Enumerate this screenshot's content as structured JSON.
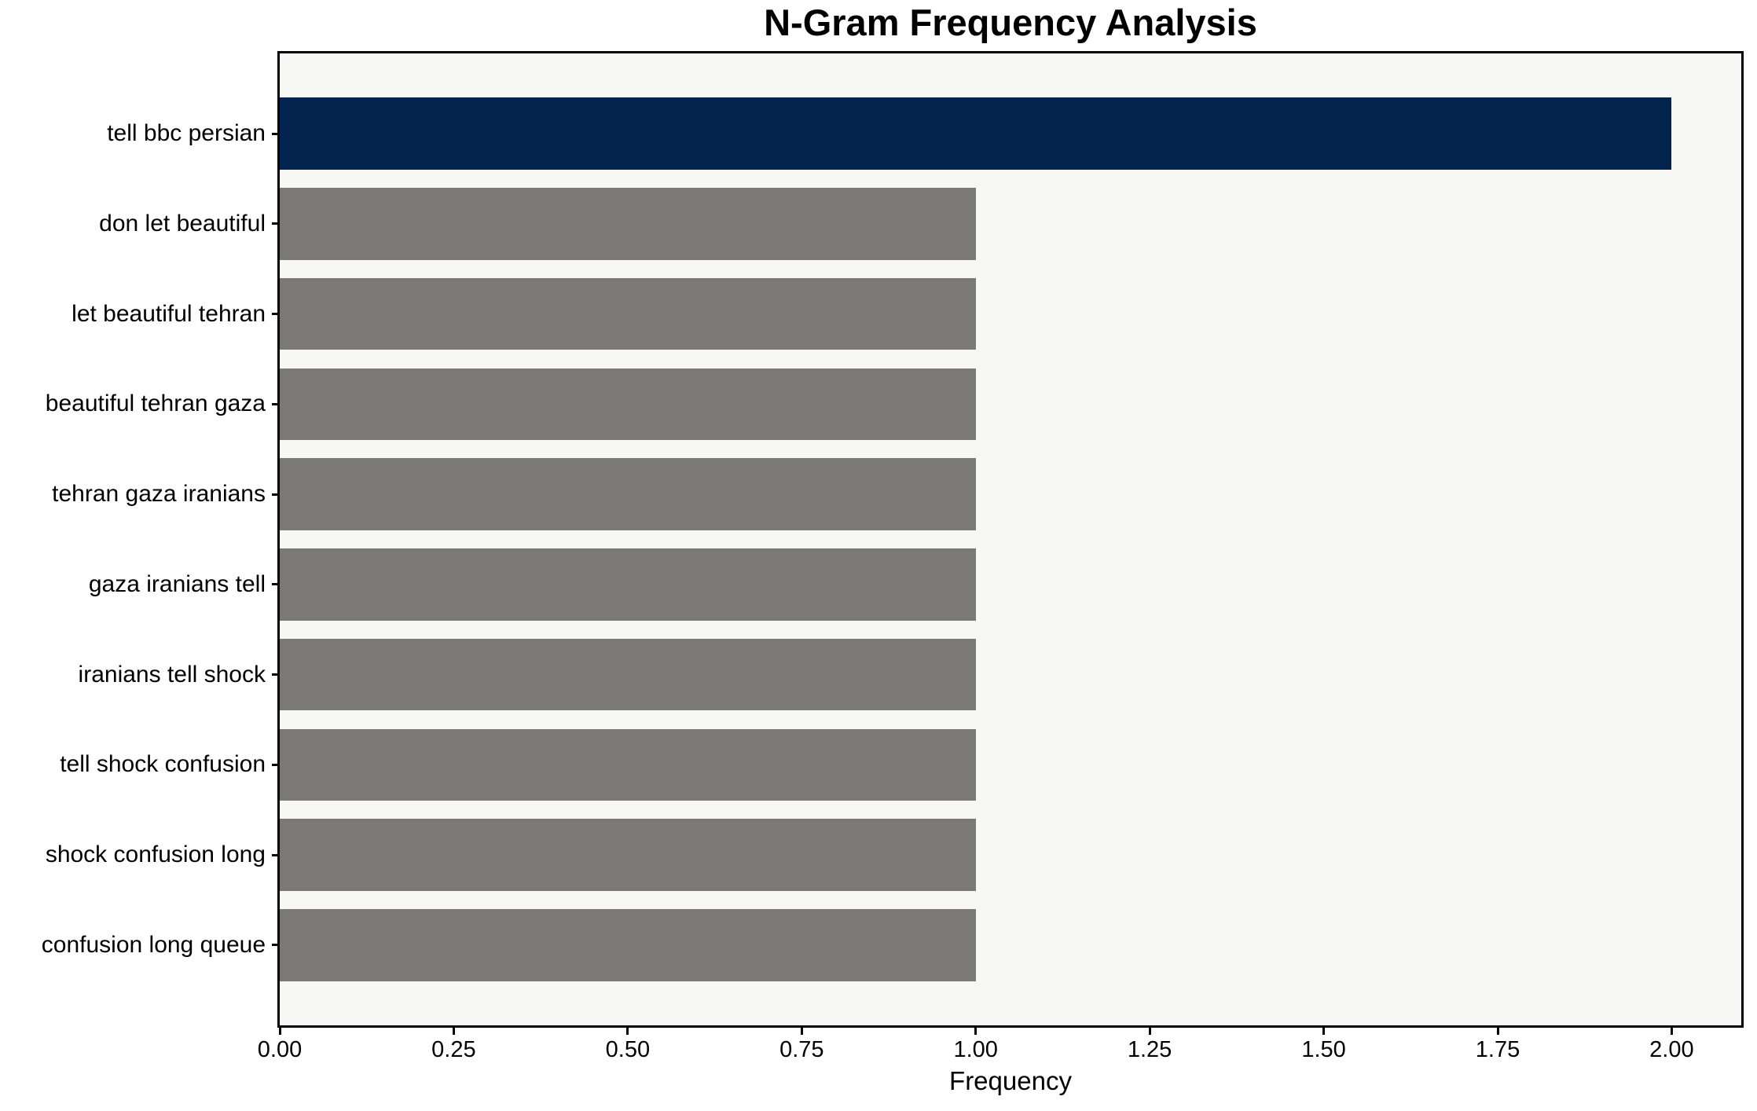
{
  "figure": {
    "background": "#ffffff",
    "plot_background": "#f7f7f6",
    "spine_color": "#000000",
    "tick_color": "#000000"
  },
  "chart_data": {
    "type": "bar",
    "orientation": "horizontal",
    "title": "N-Gram Frequency Analysis",
    "xlabel": "Frequency",
    "ylabel": "",
    "categories": [
      "tell bbc persian",
      "don let beautiful",
      "let beautiful tehran",
      "beautiful tehran gaza",
      "tehran gaza iranians",
      "gaza iranians tell",
      "iranians tell shock",
      "tell shock confusion",
      "shock confusion long",
      "confusion long queue"
    ],
    "values": [
      2,
      1,
      1,
      1,
      1,
      1,
      1,
      1,
      1,
      1
    ],
    "bar_colors": [
      "#02234e",
      "#7a7975",
      "#7a7975",
      "#7a7975",
      "#7a7975",
      "#7a7975",
      "#7a7975",
      "#7a7975",
      "#7a7975",
      "#7a7975"
    ],
    "highlight_color": "#02234e",
    "default_color": "#7a7975",
    "xlim": [
      0,
      2.1
    ],
    "xticks": [
      0.0,
      0.25,
      0.5,
      0.75,
      1.0,
      1.25,
      1.5,
      1.75,
      2.0
    ],
    "xtick_labels": [
      "0.00",
      "0.25",
      "0.50",
      "0.75",
      "1.00",
      "1.25",
      "1.50",
      "1.75",
      "2.00"
    ],
    "grid": false,
    "legend": null
  }
}
